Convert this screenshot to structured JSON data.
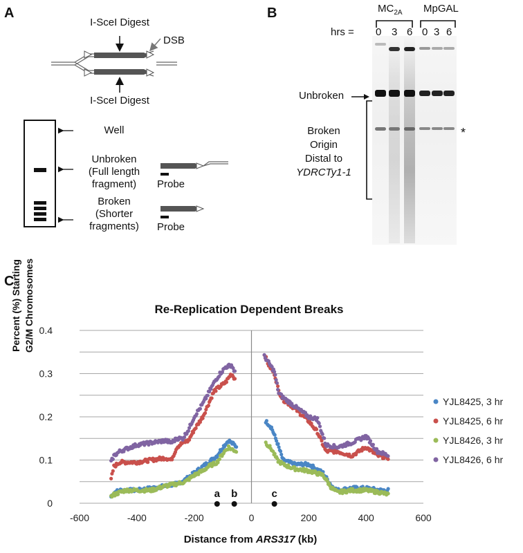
{
  "panels": {
    "a": "A",
    "b": "B",
    "c": "C"
  },
  "panel_a": {
    "digest_top": "I-SceI Digest",
    "digest_bottom": "I-SceI Digest",
    "dsb": "DSB",
    "well": "Well",
    "unbroken_line1": "Unbroken",
    "unbroken_line2": "(Full length",
    "unbroken_line3": "fragment)",
    "broken_line1": "Broken",
    "broken_line2": "(Shorter",
    "broken_line3": "fragments)",
    "probe_1": "Probe",
    "probe_2": "Probe"
  },
  "panel_b": {
    "mc_label": "MC",
    "mc_subscript": "2A",
    "mpgal_label": "MpGAL",
    "hrs_label": "hrs =",
    "mc_times": [
      "0",
      "3",
      "6"
    ],
    "mpgal_times": [
      "0",
      "3",
      "6"
    ],
    "unbroken": "Unbroken",
    "broken_line1": "Broken",
    "broken_line2": "Origin",
    "broken_line3": "Distal to",
    "broken_line4": "YDRCTy1-1",
    "asterisk": "*"
  },
  "colors": {
    "blue": "#4a86c5",
    "red": "#c9504c",
    "green": "#9bbb59",
    "purple": "#8064a2",
    "gridline": "#a6a6a6"
  },
  "chart_data": {
    "type": "scatter",
    "title": "Re-Replication Dependent Breaks",
    "xlabel_prefix": "Distance from ",
    "xlabel_italic": "ARS317",
    "xlabel_suffix": " (kb)",
    "ylabel_line1": "Percent (%) Starting",
    "ylabel_line2": "G2/M Chromosomes",
    "xlim": [
      -600,
      600
    ],
    "ylim": [
      0,
      0.4
    ],
    "xticks": [
      "-600",
      "-400",
      "-200",
      "0",
      "200",
      "400",
      "600"
    ],
    "yticks": [
      "0",
      "0.1",
      "0.2",
      "0.3",
      "0.4"
    ],
    "grid": true,
    "legend_position": "right",
    "markers": [
      {
        "label": "a",
        "x": -120
      },
      {
        "label": "b",
        "x": -60
      },
      {
        "label": "c",
        "x": 80
      }
    ],
    "series": [
      {
        "name": "YJL8425, 3 hr",
        "x": [
          -490,
          -480,
          -460,
          -440,
          -400,
          -350,
          -300,
          -260,
          -230,
          -200,
          -170,
          -150,
          -120,
          -100,
          -80,
          -70,
          -50,
          50,
          70,
          90,
          110,
          150,
          200,
          250,
          280,
          300,
          350,
          400,
          450,
          480
        ],
        "y": [
          0.015,
          0.025,
          0.03,
          0.03,
          0.03,
          0.035,
          0.04,
          0.045,
          0.055,
          0.07,
          0.085,
          0.095,
          0.11,
          0.13,
          0.145,
          0.14,
          0.13,
          0.19,
          0.175,
          0.14,
          0.1,
          0.09,
          0.09,
          0.07,
          0.04,
          0.03,
          0.035,
          0.035,
          0.03,
          0.03
        ]
      },
      {
        "name": "YJL8425, 6 hr",
        "x": [
          -490,
          -480,
          -460,
          -440,
          -400,
          -350,
          -300,
          -280,
          -260,
          -240,
          -220,
          -200,
          -170,
          -150,
          -130,
          -110,
          -90,
          -70,
          -55,
          45,
          60,
          80,
          95,
          110,
          150,
          200,
          230,
          260,
          300,
          350,
          400,
          440,
          480
        ],
        "y": [
          0.055,
          0.085,
          0.095,
          0.095,
          0.095,
          0.1,
          0.105,
          0.1,
          0.13,
          0.14,
          0.145,
          0.17,
          0.2,
          0.23,
          0.26,
          0.27,
          0.28,
          0.3,
          0.285,
          0.345,
          0.32,
          0.3,
          0.26,
          0.24,
          0.22,
          0.19,
          0.165,
          0.12,
          0.12,
          0.11,
          0.13,
          0.11,
          0.105
        ]
      },
      {
        "name": "YJL8426, 3 hr",
        "x": [
          -490,
          -480,
          -460,
          -440,
          -400,
          -350,
          -300,
          -260,
          -230,
          -200,
          -170,
          -150,
          -120,
          -100,
          -80,
          -70,
          -50,
          50,
          70,
          90,
          110,
          150,
          200,
          250,
          280,
          300,
          350,
          400,
          450,
          480
        ],
        "y": [
          0.015,
          0.02,
          0.025,
          0.03,
          0.03,
          0.03,
          0.04,
          0.045,
          0.05,
          0.065,
          0.075,
          0.085,
          0.095,
          0.115,
          0.13,
          0.125,
          0.12,
          0.14,
          0.125,
          0.1,
          0.09,
          0.08,
          0.075,
          0.065,
          0.035,
          0.025,
          0.03,
          0.03,
          0.025,
          0.02
        ]
      },
      {
        "name": "YJL8426, 6 hr",
        "x": [
          -490,
          -480,
          -460,
          -440,
          -400,
          -350,
          -300,
          -280,
          -260,
          -240,
          -220,
          -200,
          -170,
          -150,
          -130,
          -110,
          -90,
          -70,
          -55,
          45,
          60,
          80,
          95,
          110,
          150,
          200,
          230,
          260,
          300,
          350,
          400,
          440,
          480
        ],
        "y": [
          0.095,
          0.11,
          0.12,
          0.125,
          0.135,
          0.14,
          0.145,
          0.14,
          0.15,
          0.15,
          0.17,
          0.2,
          0.23,
          0.255,
          0.28,
          0.3,
          0.315,
          0.32,
          0.3,
          0.34,
          0.325,
          0.305,
          0.255,
          0.245,
          0.225,
          0.2,
          0.195,
          0.135,
          0.13,
          0.14,
          0.155,
          0.12,
          0.11
        ]
      }
    ]
  }
}
